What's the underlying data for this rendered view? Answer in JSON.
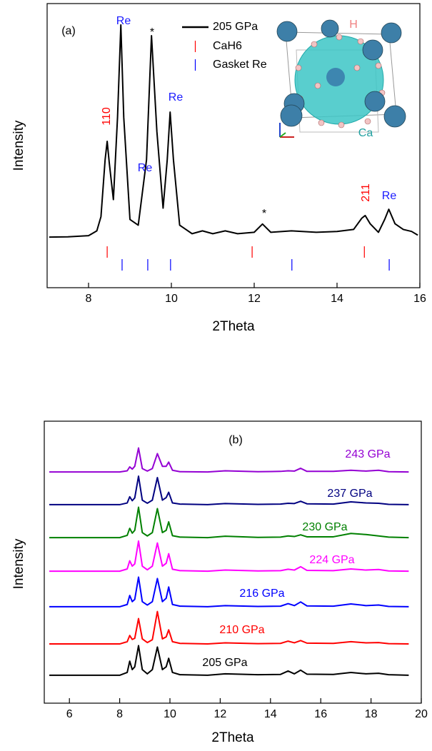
{
  "chart_data": [
    {
      "type": "line",
      "x_label": "2Theta",
      "y_label": "Intensity",
      "xlim": [
        7,
        16
      ],
      "xticks": [
        8,
        10,
        12,
        14,
        16
      ],
      "ylim": [
        0,
        100
      ],
      "series": [
        {
          "name": "205 GPa",
          "color": "#000000",
          "style": "line",
          "x": [
            7.05,
            7.5,
            8.0,
            8.2,
            8.3,
            8.4,
            8.45,
            8.5,
            8.6,
            8.7,
            8.78,
            8.85,
            9.0,
            9.2,
            9.4,
            9.52,
            9.65,
            9.8,
            9.9,
            9.97,
            10.05,
            10.2,
            10.5,
            10.75,
            11.0,
            11.3,
            11.6,
            12.0,
            12.2,
            12.4,
            12.9,
            13.5,
            14.0,
            14.4,
            14.6,
            14.68,
            14.8,
            15.0,
            15.15,
            15.25,
            15.4,
            15.6,
            15.8,
            15.95
          ],
          "values": [
            17.8,
            17.9,
            18.3,
            20,
            25,
            45,
            51.5,
            44,
            31,
            60,
            92.5,
            60,
            24,
            22,
            45,
            88.7,
            55,
            28,
            45,
            61.8,
            45,
            22,
            19,
            20,
            19,
            20,
            19,
            19.5,
            22.4,
            19.5,
            20,
            19.5,
            19.8,
            20.5,
            24.5,
            25.4,
            22.5,
            19.5,
            24,
            27.6,
            22.5,
            20.5,
            19.8,
            18.5
          ]
        },
        {
          "name": "CaH6",
          "color": "#ff0000",
          "style": "tick",
          "x": [
            8.45,
            11.95,
            14.66
          ]
        },
        {
          "name": "Gasket Re",
          "color": "#0000ff",
          "style": "tick",
          "x": [
            8.81,
            9.43,
            9.98,
            12.91,
            15.26
          ]
        }
      ],
      "annotations": [
        {
          "text": "(a)",
          "color": "#000000"
        },
        {
          "text": "Re",
          "color": "#1a1aff"
        },
        {
          "text": "*",
          "color": "#000000"
        },
        {
          "text": "Re",
          "color": "#1a1aff"
        },
        {
          "text": "Re",
          "color": "#1a1aff"
        },
        {
          "text": "110",
          "color": "#ff0000"
        },
        {
          "text": "*",
          "color": "#000000"
        },
        {
          "text": "211",
          "color": "#ff0000"
        },
        {
          "text": "Re",
          "color": "#1a1aff"
        }
      ],
      "inset_labels": [
        {
          "text": "H",
          "color": "#f08080"
        },
        {
          "text": "Ca",
          "color": "#20a0a0"
        }
      ]
    },
    {
      "type": "line",
      "x_label": "2Theta",
      "y_label": "Intensity",
      "xlim": [
        5,
        20
      ],
      "xticks": [
        6,
        8,
        10,
        12,
        14,
        16,
        18,
        20
      ],
      "ylim": [
        0,
        100
      ],
      "x": [
        5.2,
        8.0,
        8.3,
        8.4,
        8.5,
        8.6,
        8.75,
        8.9,
        9.1,
        9.3,
        9.5,
        9.7,
        9.85,
        9.95,
        10.1,
        10.4,
        11.5,
        12.2,
        13.5,
        14.4,
        14.7,
        14.95,
        15.2,
        15.45,
        16.5,
        17.2,
        17.8,
        18.3,
        18.7,
        19.5
      ],
      "series": [
        {
          "name": "205 GPa",
          "color": "#000000",
          "values": [
            9.9,
            9.9,
            10.9,
            14.9,
            11.9,
            12.9,
            20.4,
            11.9,
            10.4,
            11.9,
            19.9,
            11.9,
            12.9,
            15.9,
            10.9,
            10.1,
            9.9,
            10.4,
            10.1,
            10.2,
            11.4,
            10.4,
            11.7,
            10.3,
            10.2,
            10.9,
            10.4,
            10.6,
            10.1,
            9.9
          ]
        },
        {
          "name": "210 GPa",
          "color": "#ff0000",
          "values": [
            21.0,
            21.0,
            21.8,
            24.0,
            22.6,
            23.0,
            30.0,
            22.8,
            21.5,
            22.5,
            32.5,
            22.8,
            23.5,
            26.0,
            21.8,
            21.2,
            21.0,
            21.4,
            21.1,
            21.2,
            22.0,
            21.4,
            22.2,
            21.3,
            21.2,
            21.8,
            21.4,
            21.5,
            21.1,
            21.0
          ]
        },
        {
          "name": "216 GPa",
          "color": "#0000ff",
          "values": [
            34.2,
            34.2,
            35.0,
            38.2,
            36.0,
            36.8,
            44.7,
            36.0,
            34.8,
            36.0,
            44.2,
            36.0,
            37.2,
            41.2,
            35.0,
            34.4,
            34.2,
            34.6,
            34.3,
            34.4,
            35.3,
            34.6,
            35.9,
            34.5,
            34.4,
            35.2,
            34.6,
            34.8,
            34.3,
            34.2
          ]
        },
        {
          "name": "224 GPa",
          "color": "#ff00ff",
          "values": [
            46.8,
            46.8,
            47.6,
            50.5,
            48.6,
            49.4,
            57.5,
            48.6,
            47.3,
            48.6,
            56.8,
            48.6,
            49.6,
            53.0,
            47.5,
            47.0,
            46.8,
            47.2,
            46.9,
            47.0,
            47.5,
            47.2,
            48.4,
            47.1,
            47.0,
            47.6,
            47.2,
            47.4,
            46.9,
            46.8
          ]
        },
        {
          "name": "230 GPa",
          "color": "#008000",
          "values": [
            58.7,
            58.7,
            59.5,
            62.0,
            60.3,
            61.3,
            69.5,
            60.5,
            59.3,
            60.5,
            69.0,
            60.5,
            61.3,
            64.3,
            59.4,
            58.9,
            58.7,
            59.2,
            58.8,
            58.9,
            59.3,
            59.1,
            59.7,
            59.0,
            59.0,
            60.2,
            59.8,
            59.3,
            58.9,
            58.7
          ]
        },
        {
          "name": "237 GPa",
          "color": "#000080",
          "values": [
            70.4,
            70.4,
            71.0,
            73.2,
            71.8,
            72.8,
            80.5,
            72.0,
            70.9,
            72.0,
            80.0,
            72.0,
            72.9,
            74.8,
            71.0,
            70.6,
            70.4,
            70.8,
            70.5,
            70.6,
            70.9,
            70.8,
            71.6,
            70.7,
            70.6,
            71.4,
            71.0,
            70.9,
            70.5,
            70.4
          ]
        },
        {
          "name": "243 GPa",
          "color": "#9400d3",
          "values": [
            82.0,
            82.0,
            82.4,
            83.8,
            83.0,
            84.0,
            90.5,
            83.2,
            82.3,
            83.2,
            88.5,
            84.0,
            84.0,
            85.5,
            82.6,
            82.1,
            82.0,
            82.4,
            82.1,
            82.2,
            82.4,
            82.3,
            83.3,
            82.2,
            82.2,
            82.6,
            82.3,
            82.6,
            82.1,
            82.0
          ]
        }
      ],
      "annotations": [
        {
          "text": "(b)",
          "color": "#000000"
        }
      ]
    }
  ]
}
